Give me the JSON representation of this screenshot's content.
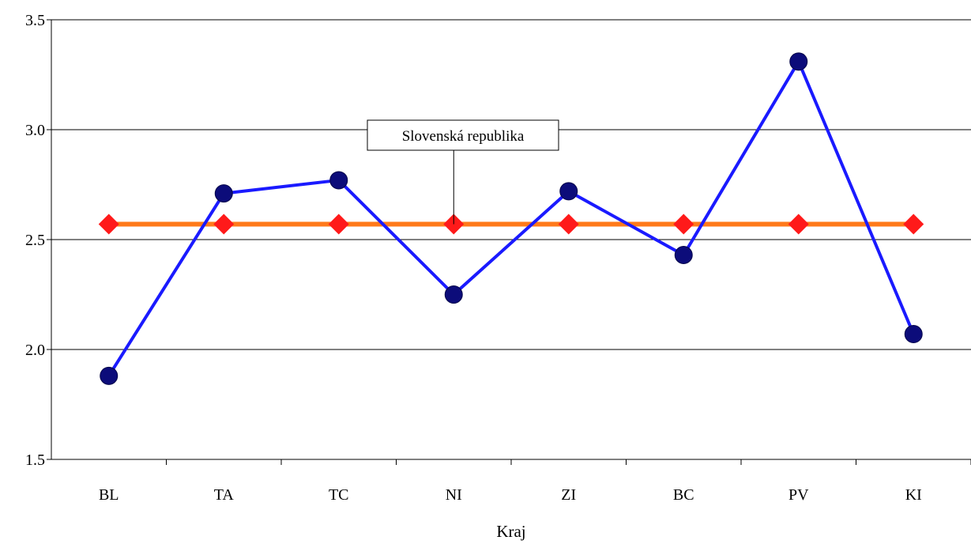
{
  "chart_data": {
    "type": "line",
    "title": "",
    "xlabel": "Kraj",
    "ylabel": "",
    "categories": [
      "BL",
      "TA",
      "TC",
      "NI",
      "ZI",
      "BC",
      "PV",
      "KI"
    ],
    "ylim": [
      1.5,
      3.5
    ],
    "yticks": [
      "1.5",
      "2.0",
      "2.5",
      "3.0",
      "3.5"
    ],
    "grid": true,
    "series": [
      {
        "values": [
          1.88,
          2.71,
          2.77,
          2.25,
          2.72,
          2.43,
          3.31,
          2.07
        ],
        "color": "#1a1aff",
        "marker": "circle",
        "marker_color": "#0c0c7a"
      },
      {
        "name": "Slovenská republika",
        "values": [
          2.57,
          2.57,
          2.57,
          2.57,
          2.57,
          2.57,
          2.57,
          2.57
        ],
        "color": "#ff7a1a",
        "marker": "diamond",
        "marker_color": "#ff1a1a"
      }
    ],
    "annotation": {
      "text": "Slovenská republika"
    }
  }
}
